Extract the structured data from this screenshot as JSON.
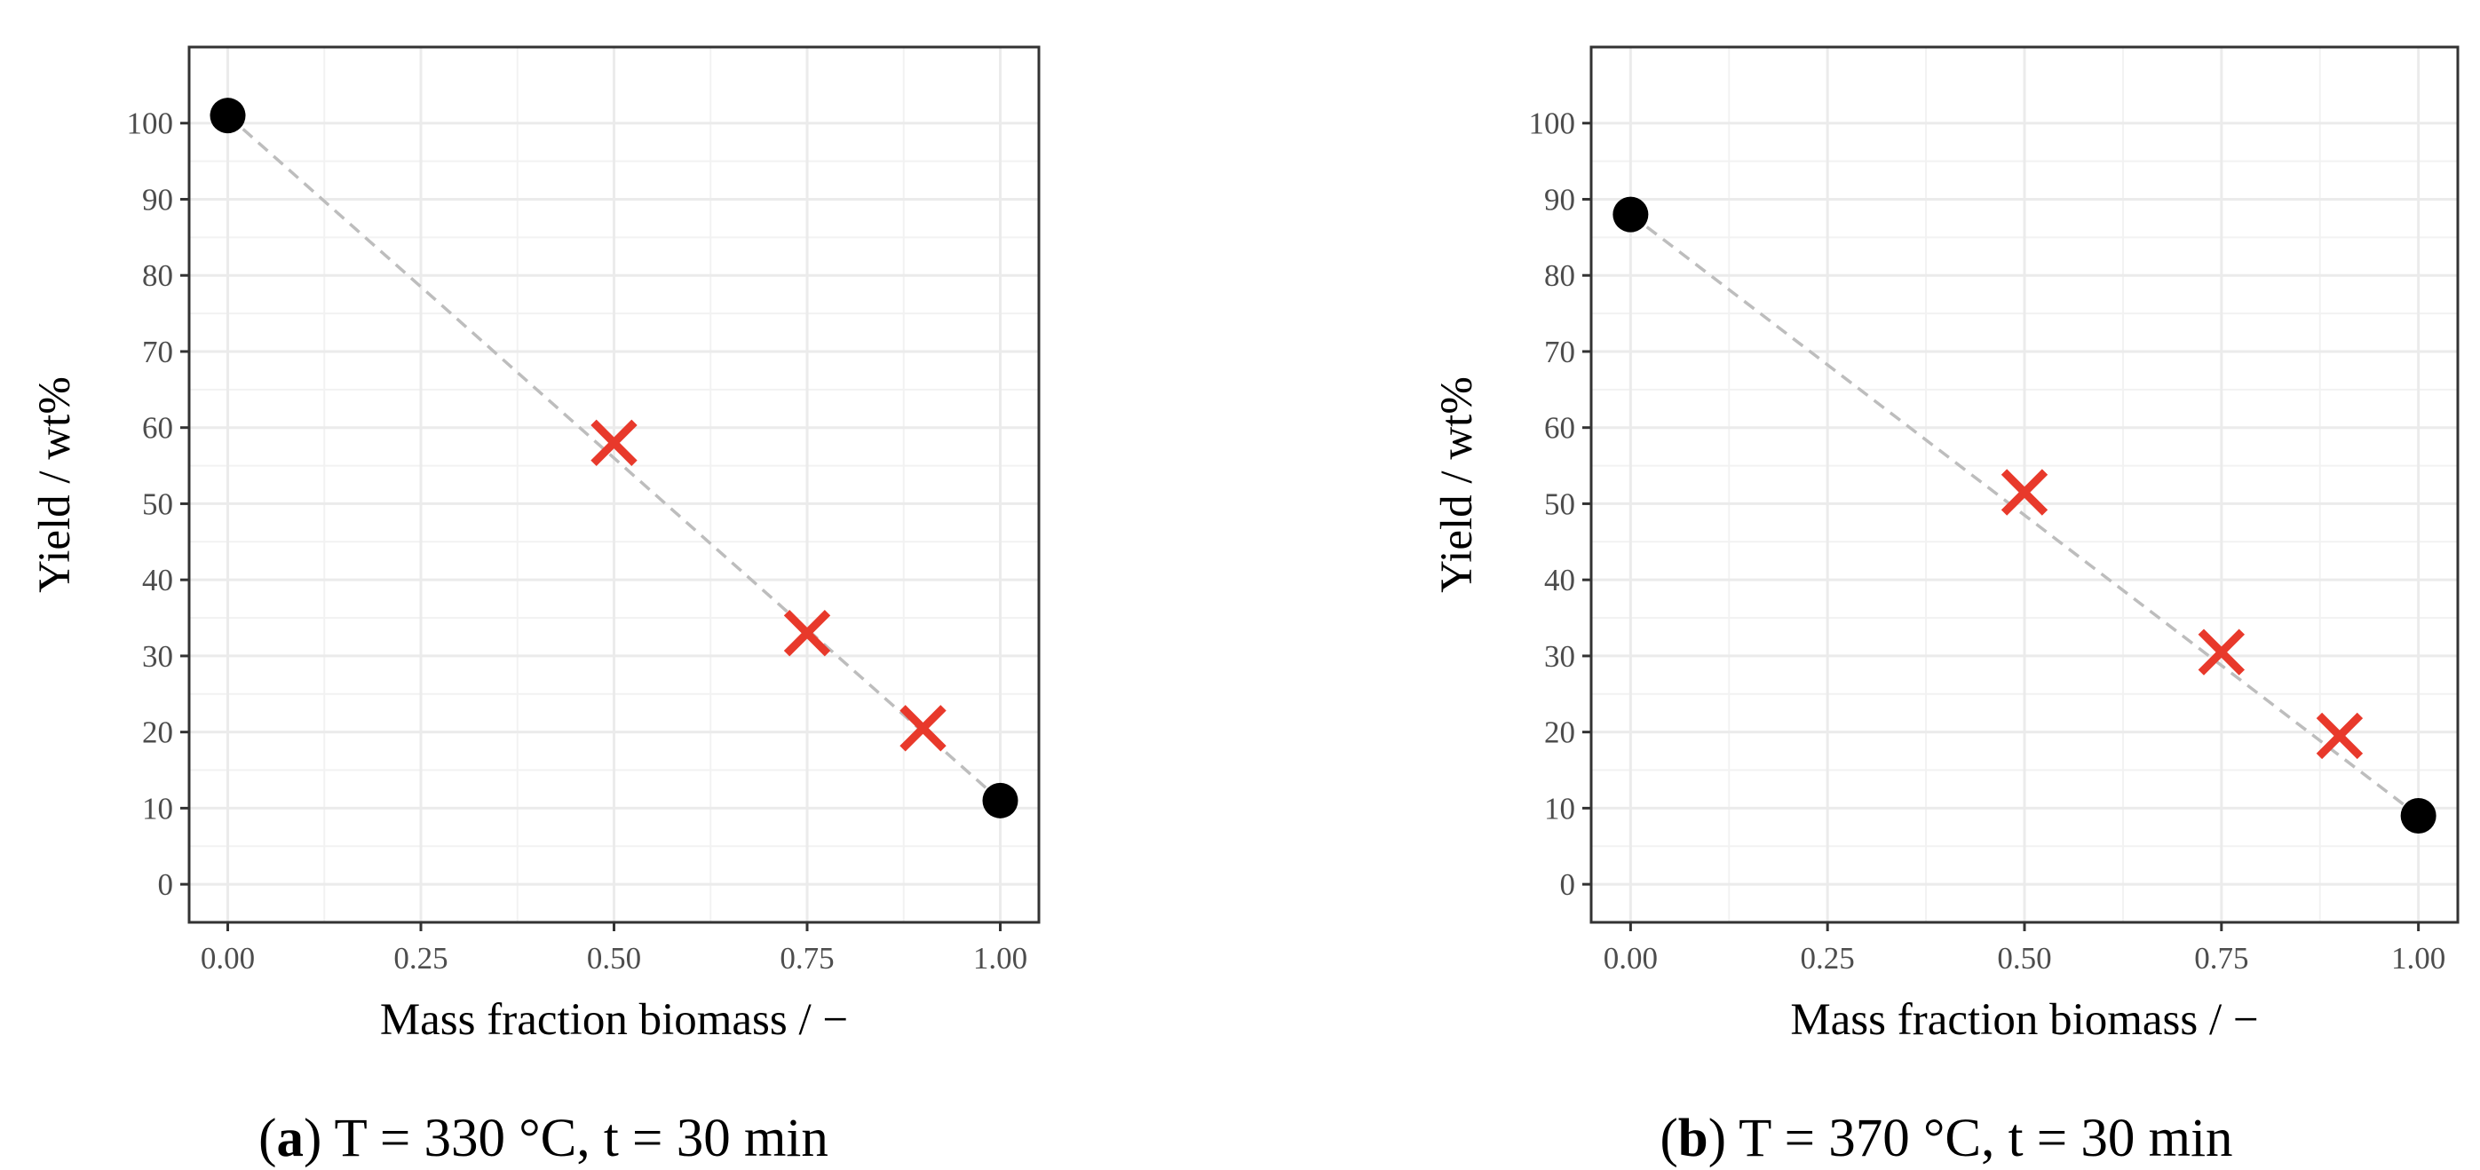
{
  "chart_data": [
    {
      "type": "scatter",
      "panel": "a",
      "caption_label": "a",
      "caption_text": "T = 330 °C, t = 30 min",
      "xlabel": "Mass fraction biomass / −",
      "ylabel": "Yield / wt%",
      "xlim": [
        -0.05,
        1.05
      ],
      "ylim": [
        -5,
        110
      ],
      "xticks": [
        "0.00",
        "0.25",
        "0.50",
        "0.75",
        "1.00"
      ],
      "yticks": [
        "0",
        "10",
        "20",
        "30",
        "40",
        "50",
        "60",
        "70",
        "80",
        "90",
        "100"
      ],
      "grid": true,
      "series": [
        {
          "marker": "circle",
          "color": "#000000",
          "points": [
            {
              "x": 0.0,
              "y": 101
            },
            {
              "x": 1.0,
              "y": 11
            }
          ]
        },
        {
          "marker": "cross",
          "color": "#e8392b",
          "points": [
            {
              "x": 0.5,
              "y": 58
            },
            {
              "x": 0.75,
              "y": 33
            },
            {
              "x": 0.9,
              "y": 20.5
            }
          ]
        }
      ],
      "reference_line": {
        "from": {
          "x": 0.0,
          "y": 101
        },
        "to": {
          "x": 1.0,
          "y": 11
        },
        "color": "#bdbdbd",
        "style": "dashed"
      }
    },
    {
      "type": "scatter",
      "panel": "b",
      "caption_label": "b",
      "caption_text": "T = 370 °C, t = 30 min",
      "xlabel": "Mass fraction biomass / −",
      "ylabel": "Yield / wt%",
      "xlim": [
        -0.05,
        1.05
      ],
      "ylim": [
        -5,
        110
      ],
      "xticks": [
        "0.00",
        "0.25",
        "0.50",
        "0.75",
        "1.00"
      ],
      "yticks": [
        "0",
        "10",
        "20",
        "30",
        "40",
        "50",
        "60",
        "70",
        "80",
        "90",
        "100"
      ],
      "grid": true,
      "series": [
        {
          "marker": "circle",
          "color": "#000000",
          "points": [
            {
              "x": 0.0,
              "y": 88
            },
            {
              "x": 1.0,
              "y": 9
            }
          ]
        },
        {
          "marker": "cross",
          "color": "#e8392b",
          "points": [
            {
              "x": 0.5,
              "y": 51.5
            },
            {
              "x": 0.75,
              "y": 30.5
            },
            {
              "x": 0.9,
              "y": 19.5
            }
          ]
        }
      ],
      "reference_line": {
        "from": {
          "x": 0.0,
          "y": 88
        },
        "to": {
          "x": 1.0,
          "y": 9
        },
        "color": "#bdbdbd",
        "style": "dashed"
      }
    }
  ]
}
